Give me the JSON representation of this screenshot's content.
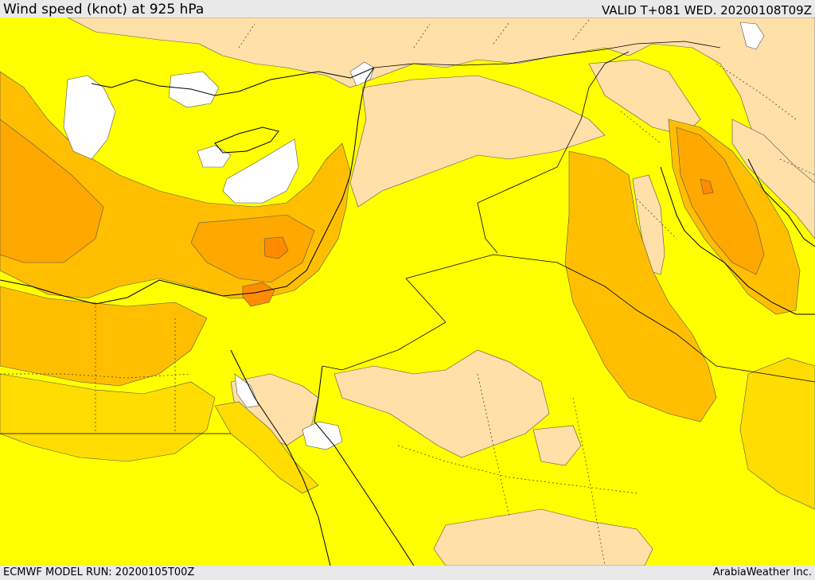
{
  "header": {
    "title": "Wind speed (knot) at 925 hPa",
    "valid_time": "VALID T+081 WED. 20200108T09Z"
  },
  "footer": {
    "model_run": "ECMWF MODEL RUN: 20200105T00Z",
    "credit": "ArabiaWeather Inc."
  },
  "colors": {
    "calm": "#ffffff",
    "light": "#ffe0a8",
    "moderate": "#ffff00",
    "fresh": "#ffdd00",
    "strong": "#ffbf00",
    "very_strong": "#ffa800",
    "gale": "#ff8c00",
    "boundary": "#000000"
  }
}
